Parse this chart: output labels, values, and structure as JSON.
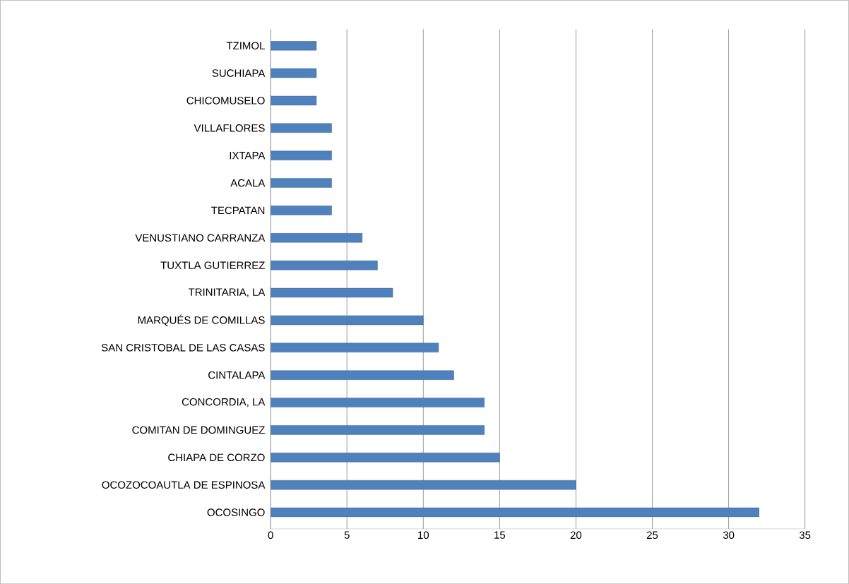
{
  "chart_data": {
    "type": "bar",
    "orientation": "horizontal",
    "categories": [
      "TZIMOL",
      "SUCHIAPA",
      "CHICOMUSELO",
      "VILLAFLORES",
      "IXTAPA",
      "ACALA",
      "TECPATAN",
      "VENUSTIANO CARRANZA",
      "TUXTLA GUTIERREZ",
      "TRINITARIA, LA",
      "MARQUÉS DE COMILLAS",
      "SAN CRISTOBAL DE LAS CASAS",
      "CINTALAPA",
      "CONCORDIA, LA",
      "COMITAN DE DOMINGUEZ",
      "CHIAPA DE CORZO",
      "OCOZOCOAUTLA DE ESPINOSA",
      "OCOSINGO"
    ],
    "values": [
      3,
      3,
      3,
      4,
      4,
      4,
      4,
      6,
      7,
      8,
      10,
      11,
      12,
      14,
      14,
      15,
      20,
      32
    ],
    "color": "#4f81bd",
    "xlim": [
      0,
      35
    ],
    "xticks": [
      0,
      5,
      10,
      15,
      20,
      25,
      30,
      35
    ],
    "grid": "x"
  }
}
